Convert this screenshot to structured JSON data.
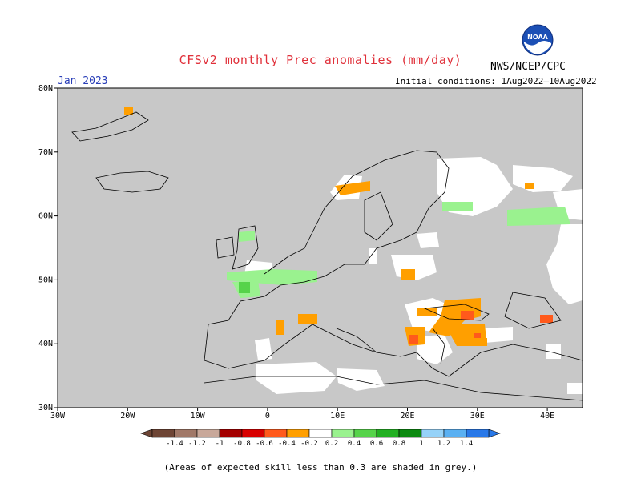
{
  "title": "CFSv2 monthly Prec anomalies (mm/day)",
  "agency": "NWS/NCEP/CPC",
  "logo_text": "NOAA",
  "month": "Jan 2023",
  "initial_conditions": "Initial conditions: 1Aug2022–10Aug2022",
  "footnote": "(Areas of expected skill less than 0.3 are shaded in grey.)",
  "lat_labels": [
    "80N",
    "70N",
    "60N",
    "50N",
    "40N",
    "30N"
  ],
  "lon_labels": [
    "30W",
    "20W",
    "10W",
    "0",
    "10E",
    "20E",
    "30E",
    "40E"
  ],
  "colorbar": {
    "labels": [
      "-1.4",
      "-1.2",
      "-1",
      "-0.8",
      "-0.6",
      "-0.4",
      "-0.2",
      "0.2",
      "0.4",
      "0.6",
      "0.8",
      "1",
      "1.2",
      "1.4"
    ],
    "colors": [
      "#6e4535",
      "#a07868",
      "#c8a89a",
      "#a40000",
      "#d80000",
      "#ff5a1c",
      "#ff9f00",
      "#ffffff",
      "#9af28f",
      "#56d34a",
      "#22b022",
      "#0c8a10",
      "#96d2f8",
      "#5ab0f2",
      "#2878e8"
    ]
  },
  "colors": {
    "low_skill_grey": "#c8c8c8",
    "land_white": "#ffffff",
    "title_red": "#e0303a",
    "month_blue": "#2a3fb8"
  }
}
